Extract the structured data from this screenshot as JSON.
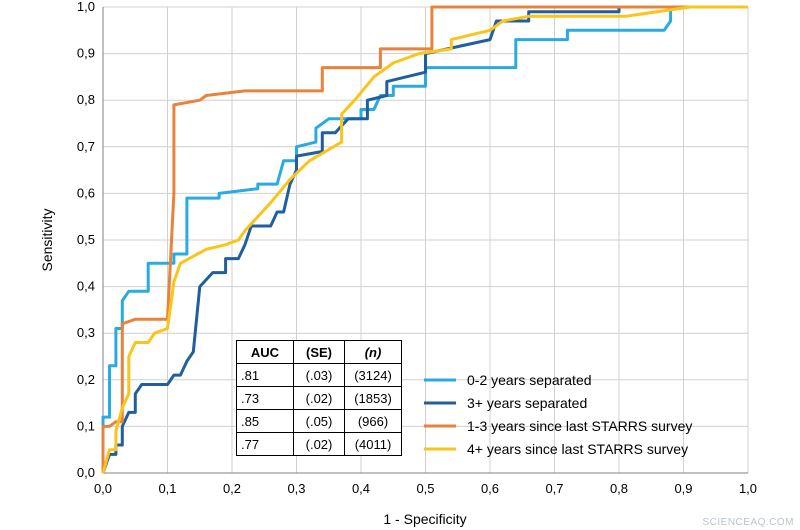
{
  "chart_data": {
    "type": "line",
    "title": "",
    "xlabel": "1 - Specificity",
    "ylabel": "Sensitivity",
    "xlim": [
      0,
      1
    ],
    "ylim": [
      0,
      1
    ],
    "grid": true,
    "x_ticks": [
      "0,0",
      "0,1",
      "0,2",
      "0,3",
      "0,4",
      "0,5",
      "0,6",
      "0,7",
      "0,8",
      "0,9",
      "1,0"
    ],
    "y_ticks": [
      "0,0",
      "0,1",
      "0,2",
      "0,3",
      "0,4",
      "0,5",
      "0,6",
      "0,7",
      "0,8",
      "0,9",
      "1,0"
    ],
    "legend_position": "bottom-right",
    "series": [
      {
        "name": "0-2 years separated",
        "color": "#29aae1",
        "points": [
          [
            0,
            0
          ],
          [
            0,
            0.12
          ],
          [
            0.01,
            0.12
          ],
          [
            0.01,
            0.23
          ],
          [
            0.02,
            0.23
          ],
          [
            0.02,
            0.31
          ],
          [
            0.03,
            0.31
          ],
          [
            0.03,
            0.37
          ],
          [
            0.04,
            0.39
          ],
          [
            0.07,
            0.39
          ],
          [
            0.07,
            0.45
          ],
          [
            0.11,
            0.45
          ],
          [
            0.11,
            0.47
          ],
          [
            0.13,
            0.47
          ],
          [
            0.13,
            0.59
          ],
          [
            0.18,
            0.59
          ],
          [
            0.18,
            0.6
          ],
          [
            0.24,
            0.61
          ],
          [
            0.24,
            0.62
          ],
          [
            0.27,
            0.62
          ],
          [
            0.28,
            0.67
          ],
          [
            0.3,
            0.67
          ],
          [
            0.3,
            0.7
          ],
          [
            0.33,
            0.71
          ],
          [
            0.33,
            0.74
          ],
          [
            0.35,
            0.76
          ],
          [
            0.4,
            0.76
          ],
          [
            0.4,
            0.78
          ],
          [
            0.42,
            0.78
          ],
          [
            0.43,
            0.81
          ],
          [
            0.45,
            0.81
          ],
          [
            0.45,
            0.83
          ],
          [
            0.5,
            0.83
          ],
          [
            0.5,
            0.87
          ],
          [
            0.64,
            0.87
          ],
          [
            0.64,
            0.93
          ],
          [
            0.72,
            0.93
          ],
          [
            0.72,
            0.95
          ],
          [
            0.87,
            0.95
          ],
          [
            0.88,
            0.97
          ],
          [
            0.88,
            1.0
          ],
          [
            1.0,
            1.0
          ]
        ]
      },
      {
        "name": "3+ years separated",
        "color": "#1f5fa0",
        "points": [
          [
            0,
            0
          ],
          [
            0.01,
            0.04
          ],
          [
            0.02,
            0.04
          ],
          [
            0.02,
            0.06
          ],
          [
            0.03,
            0.06
          ],
          [
            0.03,
            0.1
          ],
          [
            0.04,
            0.13
          ],
          [
            0.05,
            0.13
          ],
          [
            0.05,
            0.17
          ],
          [
            0.06,
            0.19
          ],
          [
            0.1,
            0.19
          ],
          [
            0.11,
            0.21
          ],
          [
            0.12,
            0.21
          ],
          [
            0.13,
            0.24
          ],
          [
            0.14,
            0.26
          ],
          [
            0.15,
            0.4
          ],
          [
            0.17,
            0.43
          ],
          [
            0.19,
            0.43
          ],
          [
            0.19,
            0.46
          ],
          [
            0.21,
            0.46
          ],
          [
            0.22,
            0.49
          ],
          [
            0.23,
            0.53
          ],
          [
            0.26,
            0.53
          ],
          [
            0.27,
            0.56
          ],
          [
            0.28,
            0.56
          ],
          [
            0.29,
            0.62
          ],
          [
            0.3,
            0.65
          ],
          [
            0.3,
            0.68
          ],
          [
            0.34,
            0.69
          ],
          [
            0.34,
            0.73
          ],
          [
            0.36,
            0.73
          ],
          [
            0.38,
            0.76
          ],
          [
            0.41,
            0.76
          ],
          [
            0.41,
            0.8
          ],
          [
            0.44,
            0.81
          ],
          [
            0.44,
            0.84
          ],
          [
            0.5,
            0.86
          ],
          [
            0.5,
            0.9
          ],
          [
            0.6,
            0.93
          ],
          [
            0.61,
            0.97
          ],
          [
            0.66,
            0.97
          ],
          [
            0.66,
            0.99
          ],
          [
            0.8,
            0.99
          ],
          [
            0.8,
            1.0
          ],
          [
            1.0,
            1.0
          ]
        ]
      },
      {
        "name": "1-3 years since last STARRS survey",
        "color": "#e8823c",
        "points": [
          [
            0,
            0
          ],
          [
            0,
            0.1
          ],
          [
            0.01,
            0.1
          ],
          [
            0.02,
            0.11
          ],
          [
            0.03,
            0.11
          ],
          [
            0.03,
            0.32
          ],
          [
            0.05,
            0.33
          ],
          [
            0.1,
            0.33
          ],
          [
            0.11,
            0.6
          ],
          [
            0.11,
            0.79
          ],
          [
            0.15,
            0.8
          ],
          [
            0.16,
            0.81
          ],
          [
            0.22,
            0.82
          ],
          [
            0.34,
            0.82
          ],
          [
            0.34,
            0.87
          ],
          [
            0.43,
            0.87
          ],
          [
            0.43,
            0.91
          ],
          [
            0.51,
            0.91
          ],
          [
            0.51,
            1.0
          ],
          [
            1.0,
            1.0
          ]
        ]
      },
      {
        "name": "4+ years since last STARRS survey",
        "color": "#fac41a",
        "points": [
          [
            0,
            0
          ],
          [
            0.01,
            0.05
          ],
          [
            0.02,
            0.05
          ],
          [
            0.02,
            0.09
          ],
          [
            0.03,
            0.14
          ],
          [
            0.04,
            0.17
          ],
          [
            0.04,
            0.25
          ],
          [
            0.05,
            0.28
          ],
          [
            0.07,
            0.28
          ],
          [
            0.08,
            0.3
          ],
          [
            0.1,
            0.31
          ],
          [
            0.11,
            0.41
          ],
          [
            0.12,
            0.45
          ],
          [
            0.16,
            0.48
          ],
          [
            0.19,
            0.49
          ],
          [
            0.21,
            0.5
          ],
          [
            0.22,
            0.52
          ],
          [
            0.26,
            0.58
          ],
          [
            0.29,
            0.63
          ],
          [
            0.32,
            0.67
          ],
          [
            0.37,
            0.71
          ],
          [
            0.37,
            0.77
          ],
          [
            0.39,
            0.8
          ],
          [
            0.42,
            0.85
          ],
          [
            0.45,
            0.88
          ],
          [
            0.49,
            0.9
          ],
          [
            0.54,
            0.91
          ],
          [
            0.54,
            0.93
          ],
          [
            0.6,
            0.95
          ],
          [
            0.62,
            0.97
          ],
          [
            0.66,
            0.98
          ],
          [
            0.81,
            0.98
          ],
          [
            0.91,
            1.0
          ],
          [
            1.0,
            1.0
          ]
        ]
      }
    ]
  },
  "stats_table": {
    "headers": [
      "AUC",
      "(SE)",
      "(n)"
    ],
    "rows": [
      [
        ".81",
        "(.03)",
        "(3124)"
      ],
      [
        ".73",
        "(.02)",
        "(1853)"
      ],
      [
        ".85",
        "(.05)",
        "(966)"
      ],
      [
        ".77",
        "(.02)",
        "(4011)"
      ]
    ]
  },
  "watermark": "SCIENCEAQ.COM"
}
